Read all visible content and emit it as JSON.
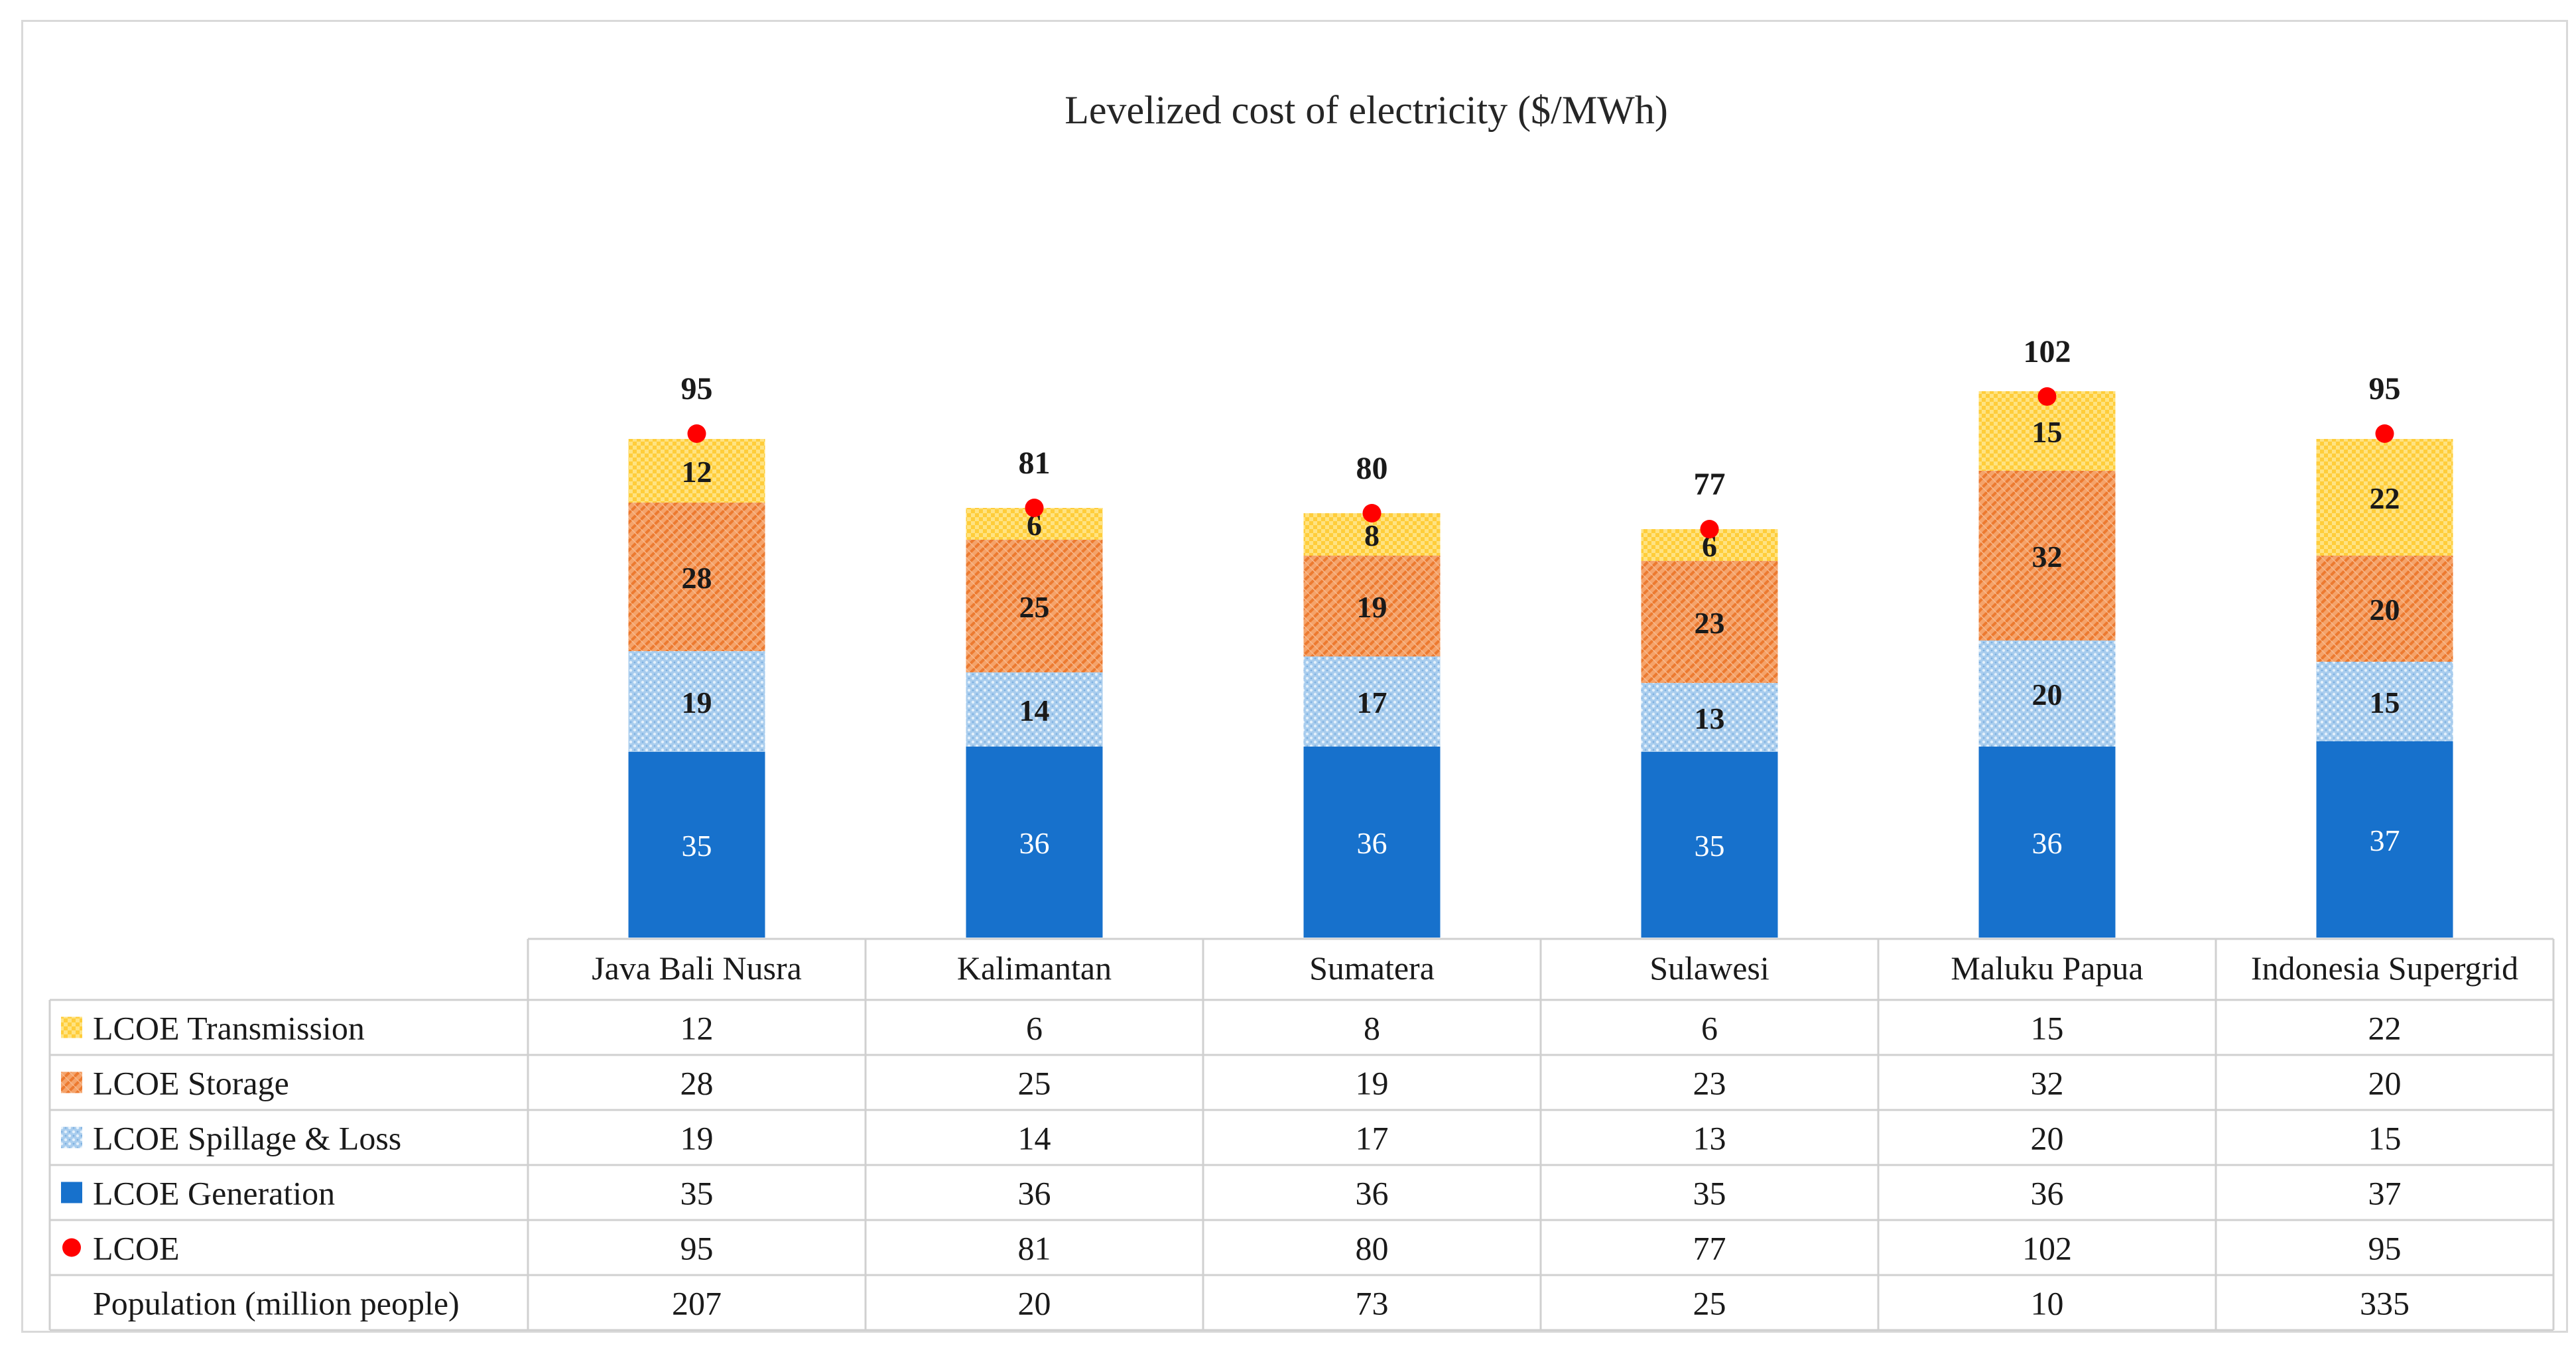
{
  "chart_data": {
    "type": "bar",
    "stacked": true,
    "title": "Levelized cost of electricity  ($/MWh)",
    "categories": [
      "Java Bali Nusra",
      "Kalimantan",
      "Sumatera",
      "Sulawesi",
      "Maluku Papua",
      "Indonesia Supergrid"
    ],
    "series": [
      {
        "name": "LCOE Generation",
        "values": [
          35,
          36,
          36,
          35,
          36,
          37
        ],
        "color": "#1771cc",
        "pattern": "solid",
        "label_color": "#ffffff",
        "label_bold": false
      },
      {
        "name": "LCOE Spillage & Loss",
        "values": [
          19,
          14,
          17,
          13,
          20,
          15
        ],
        "color": "#9dc6ec",
        "pattern": "dots",
        "label_color": "#1a1a1a",
        "label_bold": true
      },
      {
        "name": "LCOE Storage",
        "values": [
          28,
          25,
          19,
          23,
          32,
          20
        ],
        "color": "#f28c44",
        "pattern": "stripes",
        "label_color": "#1a1a1a",
        "label_bold": true
      },
      {
        "name": "LCOE Transmission",
        "values": [
          12,
          6,
          8,
          6,
          15,
          22
        ],
        "color": "#ffd54f",
        "pattern": "checks",
        "label_color": "#1a1a1a",
        "label_bold": true
      }
    ],
    "total_series": {
      "name": "LCOE",
      "values": [
        95,
        81,
        80,
        77,
        102,
        95
      ],
      "color": "#ff0000",
      "marker": "circle"
    },
    "table": {
      "rows": [
        {
          "label": "LCOE Transmission",
          "key": "LCOE Transmission",
          "values": [
            "12",
            "6",
            "8",
            "6",
            "15",
            "22"
          ]
        },
        {
          "label": "LCOE Storage",
          "key": "LCOE Storage",
          "values": [
            "28",
            "25",
            "19",
            "23",
            "32",
            "20"
          ]
        },
        {
          "label": "LCOE Spillage & Loss",
          "key": "LCOE Spillage & Loss",
          "values": [
            "19",
            "14",
            "17",
            "13",
            "20",
            "15"
          ]
        },
        {
          "label": "LCOE Generation",
          "key": "LCOE Generation",
          "values": [
            "35",
            "36",
            "36",
            "35",
            "36",
            "37"
          ]
        },
        {
          "label": "LCOE",
          "key": "LCOE",
          "values": [
            "95",
            "81",
            "80",
            "77",
            "102",
            "95"
          ]
        },
        {
          "label": "Population (million people)",
          "key": null,
          "values": [
            "207",
            "20",
            "73",
            "25",
            "10",
            "335"
          ]
        }
      ]
    },
    "ylim": [
      0,
      105
    ],
    "grid": false,
    "legend": "data-table"
  }
}
